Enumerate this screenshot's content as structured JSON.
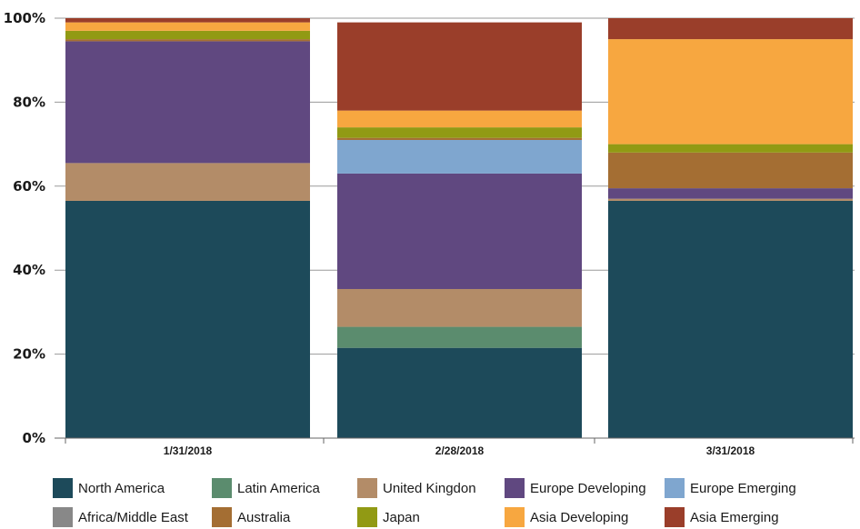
{
  "chart_data": {
    "type": "bar",
    "stacked": true,
    "percent_stacked": true,
    "categories": [
      "1/31/2018",
      "2/28/2018",
      "3/31/2018"
    ],
    "y_ticks": [
      "0%",
      "20%",
      "40%",
      "60%",
      "80%",
      "100%"
    ],
    "ylim": [
      0,
      100
    ],
    "grid": true,
    "legend_position": "bottom",
    "series": [
      {
        "name": "North America",
        "color": "#1d4a5a",
        "values": [
          56.5,
          21.5,
          56.5
        ]
      },
      {
        "name": "Latin America",
        "color": "#5b8c6e",
        "values": [
          0.0,
          5.0,
          0.0
        ]
      },
      {
        "name": "United Kingdon",
        "color": "#b38c68",
        "values": [
          9.0,
          9.0,
          0.5
        ]
      },
      {
        "name": "Europe Developing",
        "color": "#604880",
        "values": [
          29.0,
          27.5,
          2.5
        ]
      },
      {
        "name": "Europe Emerging",
        "color": "#7fa6cf",
        "values": [
          0.0,
          8.0,
          0.0
        ]
      },
      {
        "name": "Africa/Middle East",
        "color": "#888888",
        "values": [
          0.0,
          0.0,
          0.0
        ]
      },
      {
        "name": "Australia",
        "color": "#a46e33",
        "values": [
          0.5,
          0.5,
          8.5
        ]
      },
      {
        "name": "Japan",
        "color": "#919a14",
        "values": [
          2.0,
          2.5,
          2.0
        ]
      },
      {
        "name": "Asia Developing",
        "color": "#f7a740",
        "values": [
          2.0,
          4.0,
          25.0
        ]
      },
      {
        "name": "Asia Emerging",
        "color": "#9a3e2a",
        "values": [
          1.0,
          21.0,
          5.0
        ]
      }
    ]
  }
}
